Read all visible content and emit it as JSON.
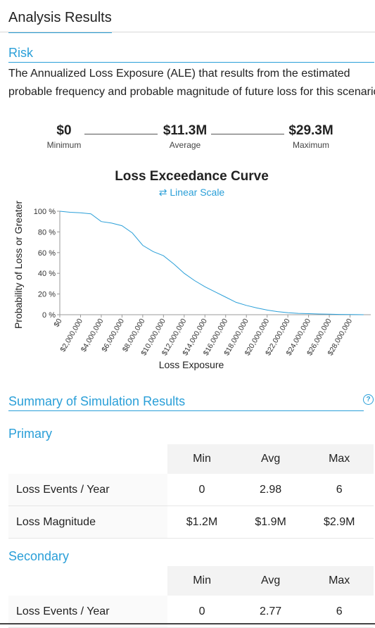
{
  "header": {
    "title": "Analysis Results"
  },
  "risk": {
    "heading": "Risk",
    "description_line1": "The Annualized Loss Exposure (ALE) that results from the estimated",
    "description_line2": "probable frequency and probable magnitude of future loss for this scenario"
  },
  "stats": {
    "minimum": {
      "value": "$0",
      "label": "Minimum"
    },
    "average": {
      "value": "$11.3M",
      "label": "Average"
    },
    "maximum": {
      "value": "$29.3M",
      "label": "Maximum"
    }
  },
  "chart_data": {
    "type": "line",
    "title": "Loss Exceedance Curve",
    "scale_toggle": "Linear Scale",
    "xlabel": "Loss Exposure",
    "ylabel": "Probability of Loss or Greater",
    "x_ticks": [
      "$0",
      "$2,000,000",
      "$4,000,000",
      "$6,000,000",
      "$8,000,000",
      "$10,000,000",
      "$12,000,000",
      "$14,000,000",
      "$16,000,000",
      "$18,000,000",
      "$20,000,000",
      "$22,000,000",
      "$24,000,000",
      "$26,000,000",
      "$28,000,000"
    ],
    "y_ticks": [
      "100 %",
      "80 %",
      "60 %",
      "40 %",
      "20 %",
      "0 %"
    ],
    "xlim": [
      0,
      30000000
    ],
    "ylim": [
      0,
      100
    ],
    "x": [
      0,
      500000,
      1000000,
      2000000,
      3000000,
      4000000,
      5000000,
      6000000,
      7000000,
      8000000,
      9000000,
      10000000,
      11000000,
      12000000,
      13000000,
      14000000,
      15000000,
      16000000,
      17000000,
      18000000,
      19000000,
      20000000,
      21000000,
      22000000,
      23000000,
      24000000,
      25000000,
      26000000,
      27000000,
      28000000,
      29300000
    ],
    "y": [
      100,
      99.5,
      99,
      98.5,
      97.5,
      90,
      88.5,
      86,
      79,
      67,
      61,
      57,
      49,
      40,
      33,
      27,
      22,
      17,
      12,
      9,
      6.5,
      4.5,
      3,
      2,
      1.3,
      1,
      0.7,
      0.5,
      0.3,
      0.2,
      0
    ]
  },
  "summary": {
    "heading": "Summary of Simulation Results",
    "help_icon": "help-circle-icon"
  },
  "primary": {
    "heading": "Primary",
    "columns": [
      "Min",
      "Avg",
      "Max"
    ],
    "rows": [
      {
        "label": "Loss Events / Year",
        "min": "0",
        "avg": "2.98",
        "max": "6"
      },
      {
        "label": "Loss Magnitude",
        "min": "$1.2M",
        "avg": "$1.9M",
        "max": "$2.9M"
      }
    ]
  },
  "secondary": {
    "heading": "Secondary",
    "columns": [
      "Min",
      "Avg",
      "Max"
    ],
    "rows": [
      {
        "label": "Loss Events / Year",
        "min": "0",
        "avg": "2.77",
        "max": "6"
      }
    ]
  },
  "colors": {
    "accent": "#2a9fd8",
    "line": "#2a9fd8"
  }
}
